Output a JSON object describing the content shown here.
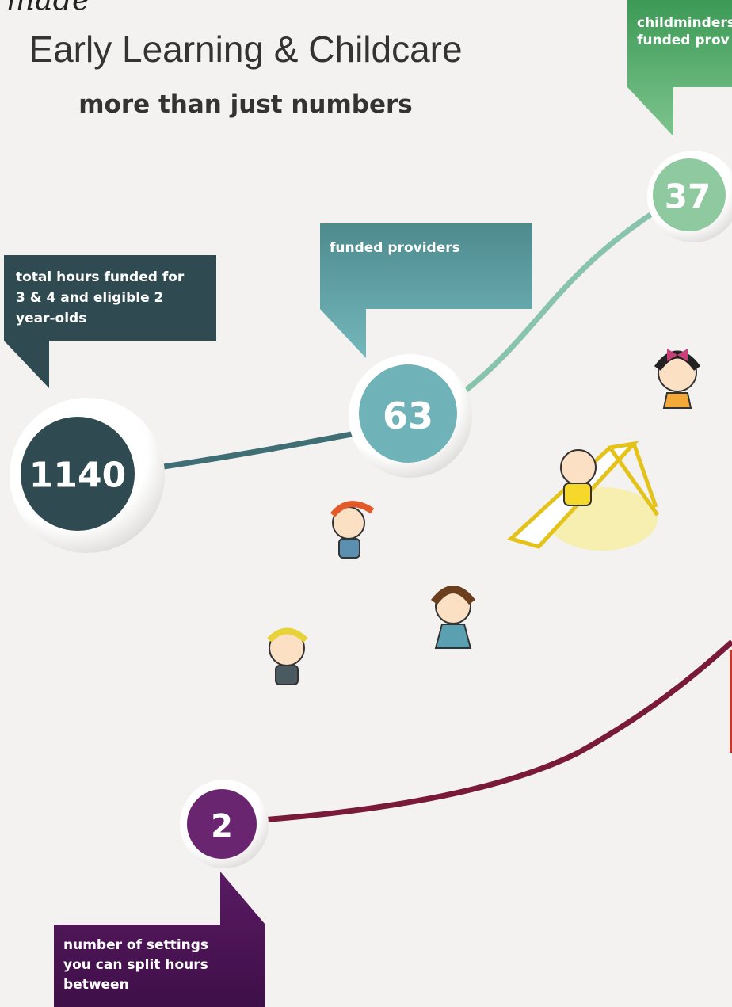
{
  "header": {
    "script_word": "made",
    "title": "Early Learning & Childcare",
    "subtitle": "more than just numbers"
  },
  "stats": [
    {
      "value": "1140",
      "label": [
        "total hours funded for",
        "3 & 4  and eligible 2",
        "year-olds"
      ]
    },
    {
      "value": "63",
      "label": [
        "funded providers"
      ]
    },
    {
      "value": "37",
      "label": [
        "childminders",
        "funded prov"
      ]
    },
    {
      "value": "2",
      "label": [
        "number of settings",
        "you can split hours",
        "between"
      ]
    }
  ]
}
